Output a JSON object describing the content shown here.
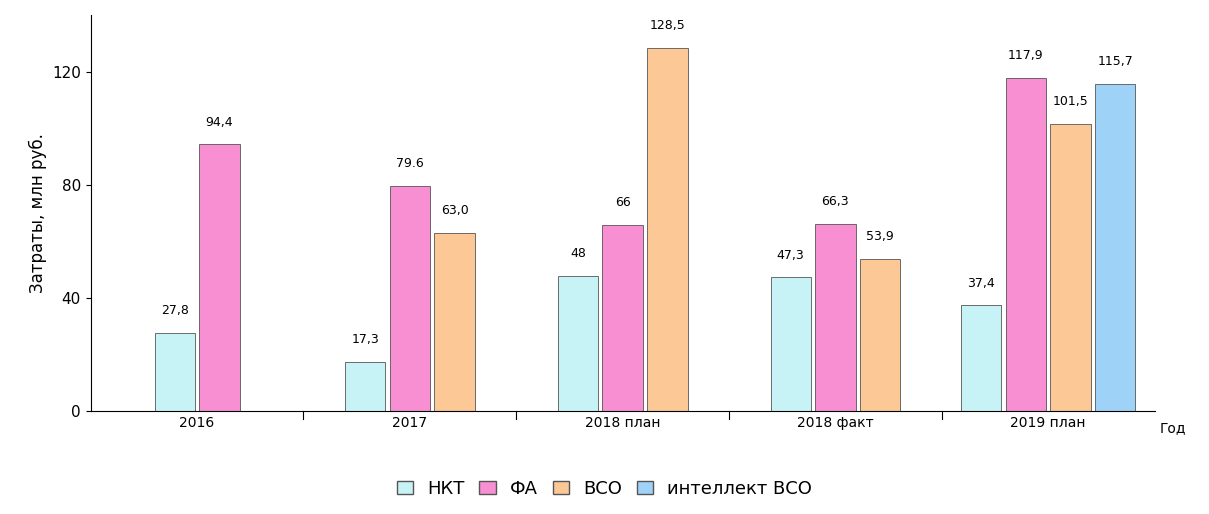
{
  "chart_data": {
    "type": "bar",
    "x_label": "Год",
    "y_label": "Затраты, млн руб.",
    "categories": [
      "2016",
      "2017",
      "2018 план",
      "2018 факт",
      "2019 план"
    ],
    "series": [
      {
        "name": "НКТ",
        "color": "#c8f3f6",
        "values": [
          27.8,
          17.3,
          48,
          47.3,
          37.4
        ],
        "value_labels": [
          "27,8",
          "17,3",
          "48",
          "47,3",
          "37,4"
        ]
      },
      {
        "name": "ФА",
        "color": "#f78fd2",
        "values": [
          94.4,
          79.6,
          66,
          66.3,
          117.9
        ],
        "value_labels": [
          "94,4",
          "79.6",
          "66",
          "66,3",
          "117,9"
        ]
      },
      {
        "name": "ВСО",
        "color": "#fcc896",
        "values": [
          null,
          63.0,
          128.5,
          53.9,
          101.5
        ],
        "value_labels": [
          null,
          "63,0",
          "128,5",
          "53,9",
          "101,5"
        ]
      },
      {
        "name": "интеллект ВСО",
        "color": "#9fd2f7",
        "values": [
          null,
          null,
          null,
          null,
          115.7
        ],
        "value_labels": [
          null,
          null,
          null,
          null,
          "115,7"
        ]
      }
    ],
    "ylim": [
      0,
      140
    ],
    "yticks": [
      0,
      40,
      80,
      120
    ],
    "grid": false,
    "data_labels": true,
    "legend": "lower center"
  }
}
